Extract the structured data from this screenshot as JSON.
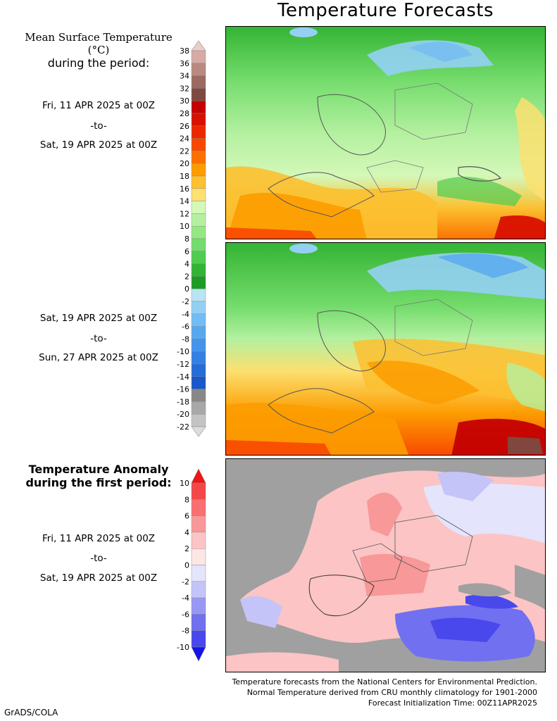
{
  "title": "Temperature Forecasts",
  "legend1": {
    "heading_line1": "Mean Surface Temperature (°C)",
    "heading_line2": "during the period:",
    "ticks": [
      "38",
      "36",
      "34",
      "32",
      "30",
      "28",
      "26",
      "24",
      "22",
      "20",
      "18",
      "16",
      "14",
      "12",
      "10",
      "8",
      "6",
      "4",
      "2",
      "0",
      "-2",
      "-4",
      "-6",
      "-8",
      "-10",
      "-12",
      "-14",
      "-16",
      "-18",
      "-20",
      "-22"
    ],
    "colors": [
      "#eccdc6",
      "#d6aba3",
      "#b88a80",
      "#9c6a60",
      "#7d4a40",
      "#c40000",
      "#d81000",
      "#ec2800",
      "#f84800",
      "#fc7000",
      "#fc9c00",
      "#fcc030",
      "#fce070",
      "#d4f8b8",
      "#b4f0a0",
      "#94e884",
      "#74dc6c",
      "#50cc50",
      "#34b434",
      "#1c9c24",
      "#b8e4f4",
      "#94d0f4",
      "#74bcf4",
      "#58a8f0",
      "#4494ec",
      "#3480e4",
      "#246cd8",
      "#1858c8",
      "#888888",
      "#a8a8a8",
      "#c4c4c4",
      "#dcdcdc"
    ]
  },
  "period1": {
    "start": "Fri, 11 APR 2025 at 00Z",
    "sep": "-to-",
    "end": "Sat, 19 APR 2025 at 00Z"
  },
  "period2": {
    "start": "Sat, 19 APR 2025 at 00Z",
    "sep": "-to-",
    "end": "Sun, 27 APR 2025 at 00Z"
  },
  "legend2": {
    "heading_line1": "Temperature Anomaly",
    "heading_line2": "during the first period:",
    "ticks": [
      "10",
      "8",
      "6",
      "4",
      "2",
      "0",
      "-2",
      "-4",
      "-6",
      "-8",
      "-10"
    ],
    "colors": [
      "#f01414",
      "#f44848",
      "#f87070",
      "#f89898",
      "#fcc4c4",
      "#fce6e6",
      "#e4e4fc",
      "#c4c4f8",
      "#9898f4",
      "#7070f0",
      "#4848ec",
      "#1414e4"
    ]
  },
  "period3": {
    "start": "Fri, 11 APR 2025 at 00Z",
    "sep": "-to-",
    "end": "Sat, 19 APR 2025 at 00Z"
  },
  "footer": {
    "line1": "Temperature forecasts from the National Centers for Environmental Prediction.",
    "line2": "Normal Temperature derived from CRU monthly climatology for 1901-2000",
    "line3": "Forecast Initialization Time: 00Z11APR2025"
  },
  "credit": "GrADS/COLA"
}
